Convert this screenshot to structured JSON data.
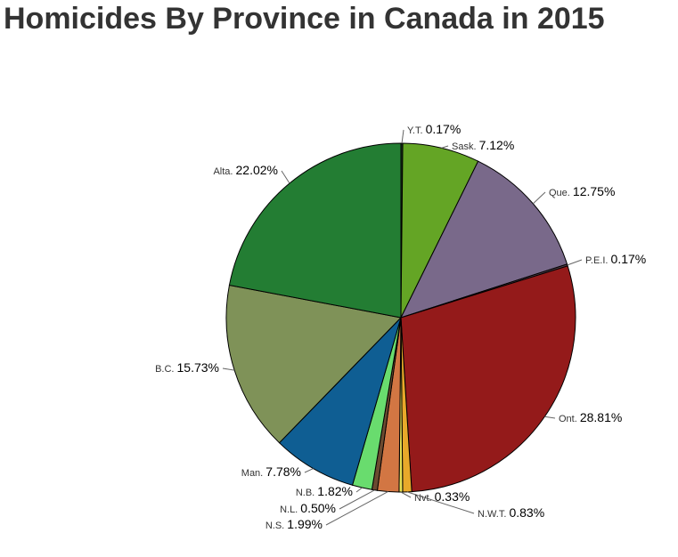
{
  "chart_data": {
    "type": "pie",
    "title": "Homicides By Province in Canada in 2015",
    "slices": [
      {
        "label": "Y.T.",
        "percent_label": "0.17%",
        "value": 0.17,
        "color": "#1b3a1b"
      },
      {
        "label": "Sask.",
        "percent_label": "7.12%",
        "value": 7.12,
        "color": "#64a525"
      },
      {
        "label": "Que.",
        "percent_label": "12.75%",
        "value": 12.75,
        "color": "#79698a"
      },
      {
        "label": "P.E.I.",
        "percent_label": "0.17%",
        "value": 0.17,
        "color": "#4f3b47"
      },
      {
        "label": "Ont.",
        "percent_label": "28.81%",
        "value": 28.81,
        "color": "#941a1a"
      },
      {
        "label": "N.W.T.",
        "percent_label": "0.83%",
        "value": 0.83,
        "color": "#e8a92a"
      },
      {
        "label": "Nvt.",
        "percent_label": "0.33%",
        "value": 0.33,
        "color": "#e6e052"
      },
      {
        "label": "N.S.",
        "percent_label": "1.99%",
        "value": 1.99,
        "color": "#d27643"
      },
      {
        "label": "N.L.",
        "percent_label": "0.50%",
        "value": 0.5,
        "color": "#6b4a30"
      },
      {
        "label": "N.B.",
        "percent_label": "1.82%",
        "value": 1.82,
        "color": "#69dc6e"
      },
      {
        "label": "Man.",
        "percent_label": "7.78%",
        "value": 7.78,
        "color": "#0f5e93"
      },
      {
        "label": "B.C.",
        "percent_label": "15.73%",
        "value": 15.73,
        "color": "#7f9258"
      },
      {
        "label": "Alta.",
        "percent_label": "22.02%",
        "value": 22.02,
        "color": "#237d33"
      }
    ]
  }
}
